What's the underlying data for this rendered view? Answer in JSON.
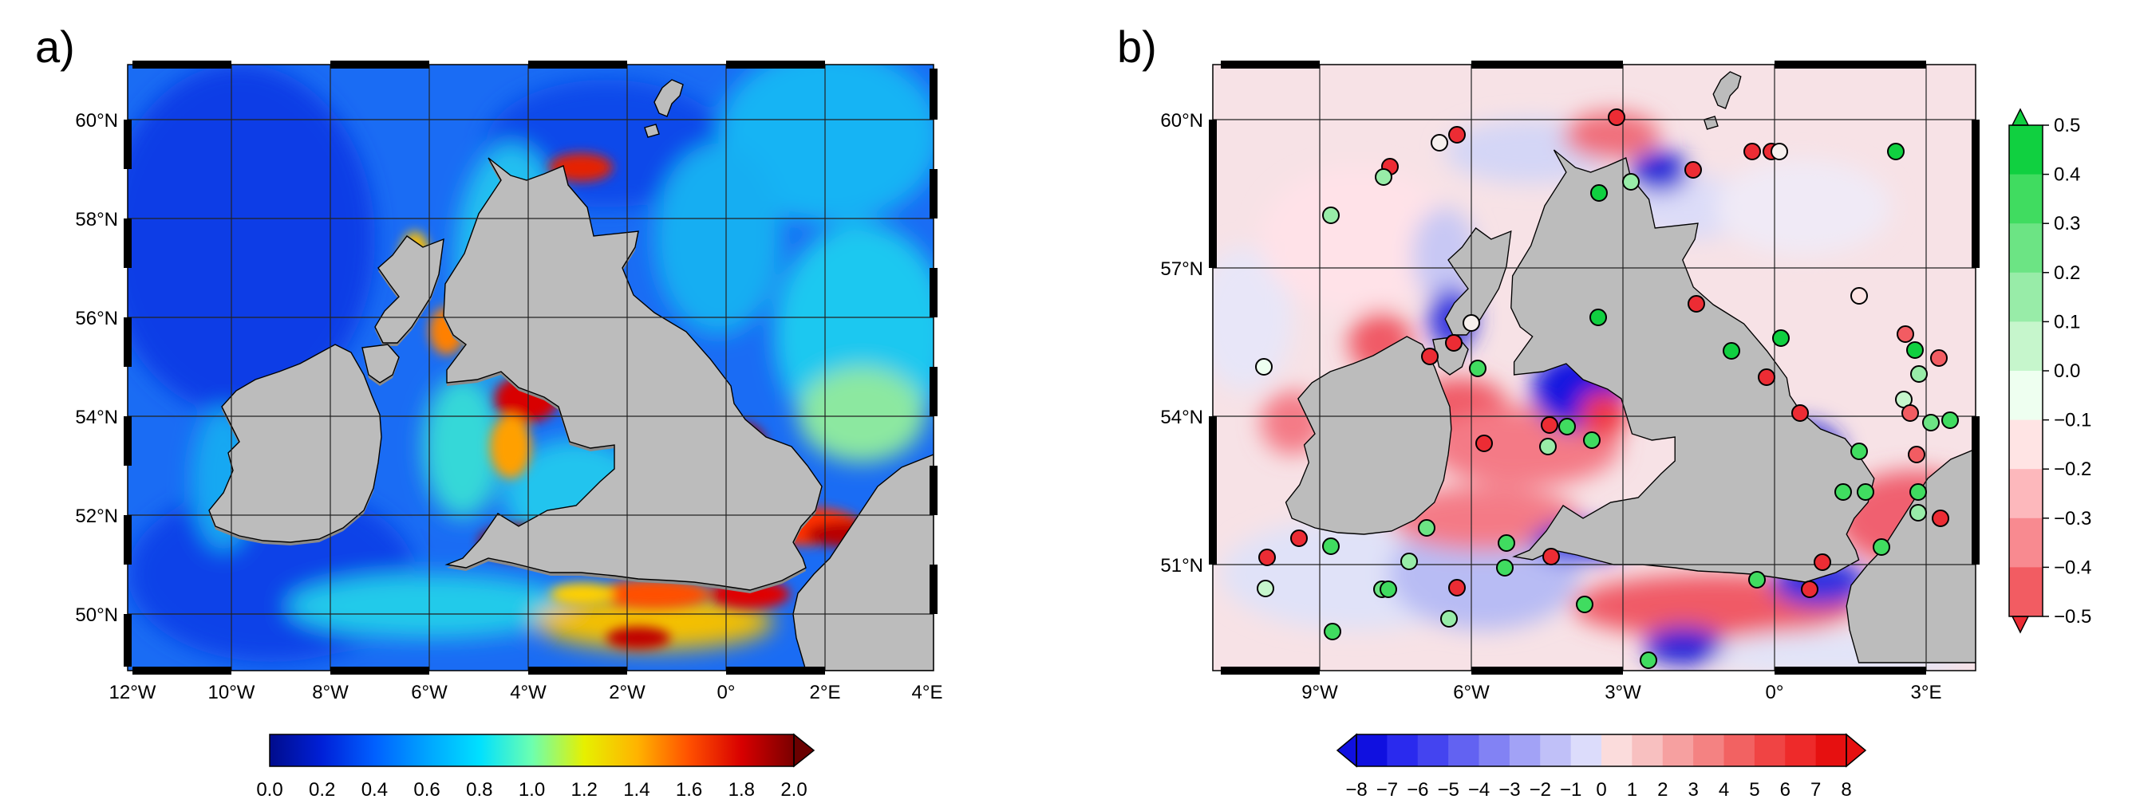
{
  "panels": {
    "a": {
      "label": "a)",
      "lat_ticks": [
        "60°N",
        "58°N",
        "56°N",
        "54°N",
        "52°N",
        "50°N"
      ],
      "lon_ticks": [
        "12°W",
        "10°W",
        "8°W",
        "6°W",
        "4°W",
        "2°W",
        "0°",
        "2°E",
        "4°E"
      ],
      "colorbar": {
        "ticks": [
          "0.0",
          "0.2",
          "0.4",
          "0.6",
          "0.8",
          "1.0",
          "1.2",
          "1.4",
          "1.6",
          "1.8",
          "2.0"
        ],
        "colors": [
          "#000c8c",
          "#0020d8",
          "#0060ff",
          "#00a4ff",
          "#00e0ff",
          "#6cffb0",
          "#e6f000",
          "#ffb400",
          "#ff5000",
          "#d80000",
          "#7a0000"
        ]
      }
    },
    "b": {
      "label": "b)",
      "lat_ticks": [
        "60°N",
        "57°N",
        "54°N",
        "51°N"
      ],
      "lon_ticks": [
        "9°W",
        "6°W",
        "3°W",
        "0°",
        "3°E"
      ],
      "colorbar_bottom": {
        "ticks": [
          "−8",
          "−7",
          "−6",
          "−5",
          "−4",
          "−3",
          "−2",
          "−1",
          "0",
          "1",
          "2",
          "3",
          "4",
          "5",
          "6",
          "7",
          "8"
        ],
        "colors": [
          "#1010e0",
          "#2a2aee",
          "#4444f0",
          "#6262f2",
          "#8282f4",
          "#a2a2f6",
          "#c0c0f8",
          "#dcdcfb",
          "#fbdcdc",
          "#f8c0c0",
          "#f6a0a0",
          "#f48282",
          "#f26262",
          "#f04444",
          "#ee2a2a",
          "#e61010"
        ]
      },
      "colorbar_right": {
        "ticks": [
          "0.5",
          "0.4",
          "0.3",
          "0.2",
          "0.1",
          "0.0",
          "−0.1",
          "−0.2",
          "−0.3",
          "−0.4",
          "−0.5"
        ],
        "colors": [
          "#10d040",
          "#40dc60",
          "#6ce484",
          "#98eca8",
          "#c6f6cc",
          "#eefff0",
          "#ffe4e4",
          "#fdb8bc",
          "#f88a90",
          "#f25c62",
          "#ec2c34"
        ]
      }
    }
  },
  "colors": {
    "land": "#bcbcbc",
    "land_shadow": "#8a8a8a",
    "ocean_low": "#0a3cf0",
    "ocean_mid": "#1aa8f4",
    "hot": "#c80000",
    "diff_bg": "#f7e4e8"
  }
}
